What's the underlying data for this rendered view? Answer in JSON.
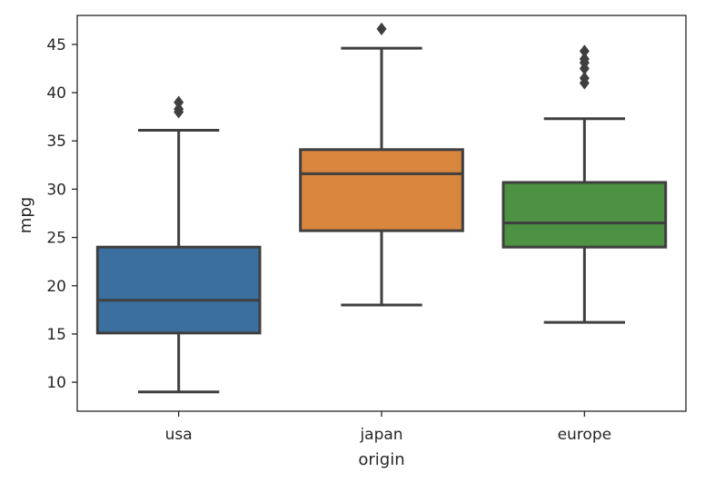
{
  "chart_data": {
    "type": "box",
    "xlabel": "origin",
    "ylabel": "mpg",
    "ylim": [
      7,
      48
    ],
    "yticks": [
      10,
      15,
      20,
      25,
      30,
      35,
      40,
      45
    ],
    "grid": false,
    "legend": "none",
    "categories": [
      "usa",
      "japan",
      "europe"
    ],
    "boxes": [
      {
        "category": "usa",
        "color": "#3a6f9f",
        "whisker_low": 9,
        "q1": 15.1,
        "median": 18.5,
        "q3": 24.0,
        "whisker_high": 36.1,
        "outliers": [
          38.0,
          38.3,
          39.0
        ]
      },
      {
        "category": "japan",
        "color": "#d8853e",
        "whisker_low": 18.0,
        "q1": 25.7,
        "median": 31.6,
        "q3": 34.1,
        "whisker_high": 44.6,
        "outliers": [
          46.6
        ]
      },
      {
        "category": "europe",
        "color": "#4d9142",
        "whisker_low": 16.2,
        "q1": 24.0,
        "median": 26.5,
        "q3": 30.7,
        "whisker_high": 37.3,
        "outliers": [
          41.0,
          41.5,
          42.5,
          43.1,
          43.5,
          44.3
        ]
      }
    ]
  }
}
